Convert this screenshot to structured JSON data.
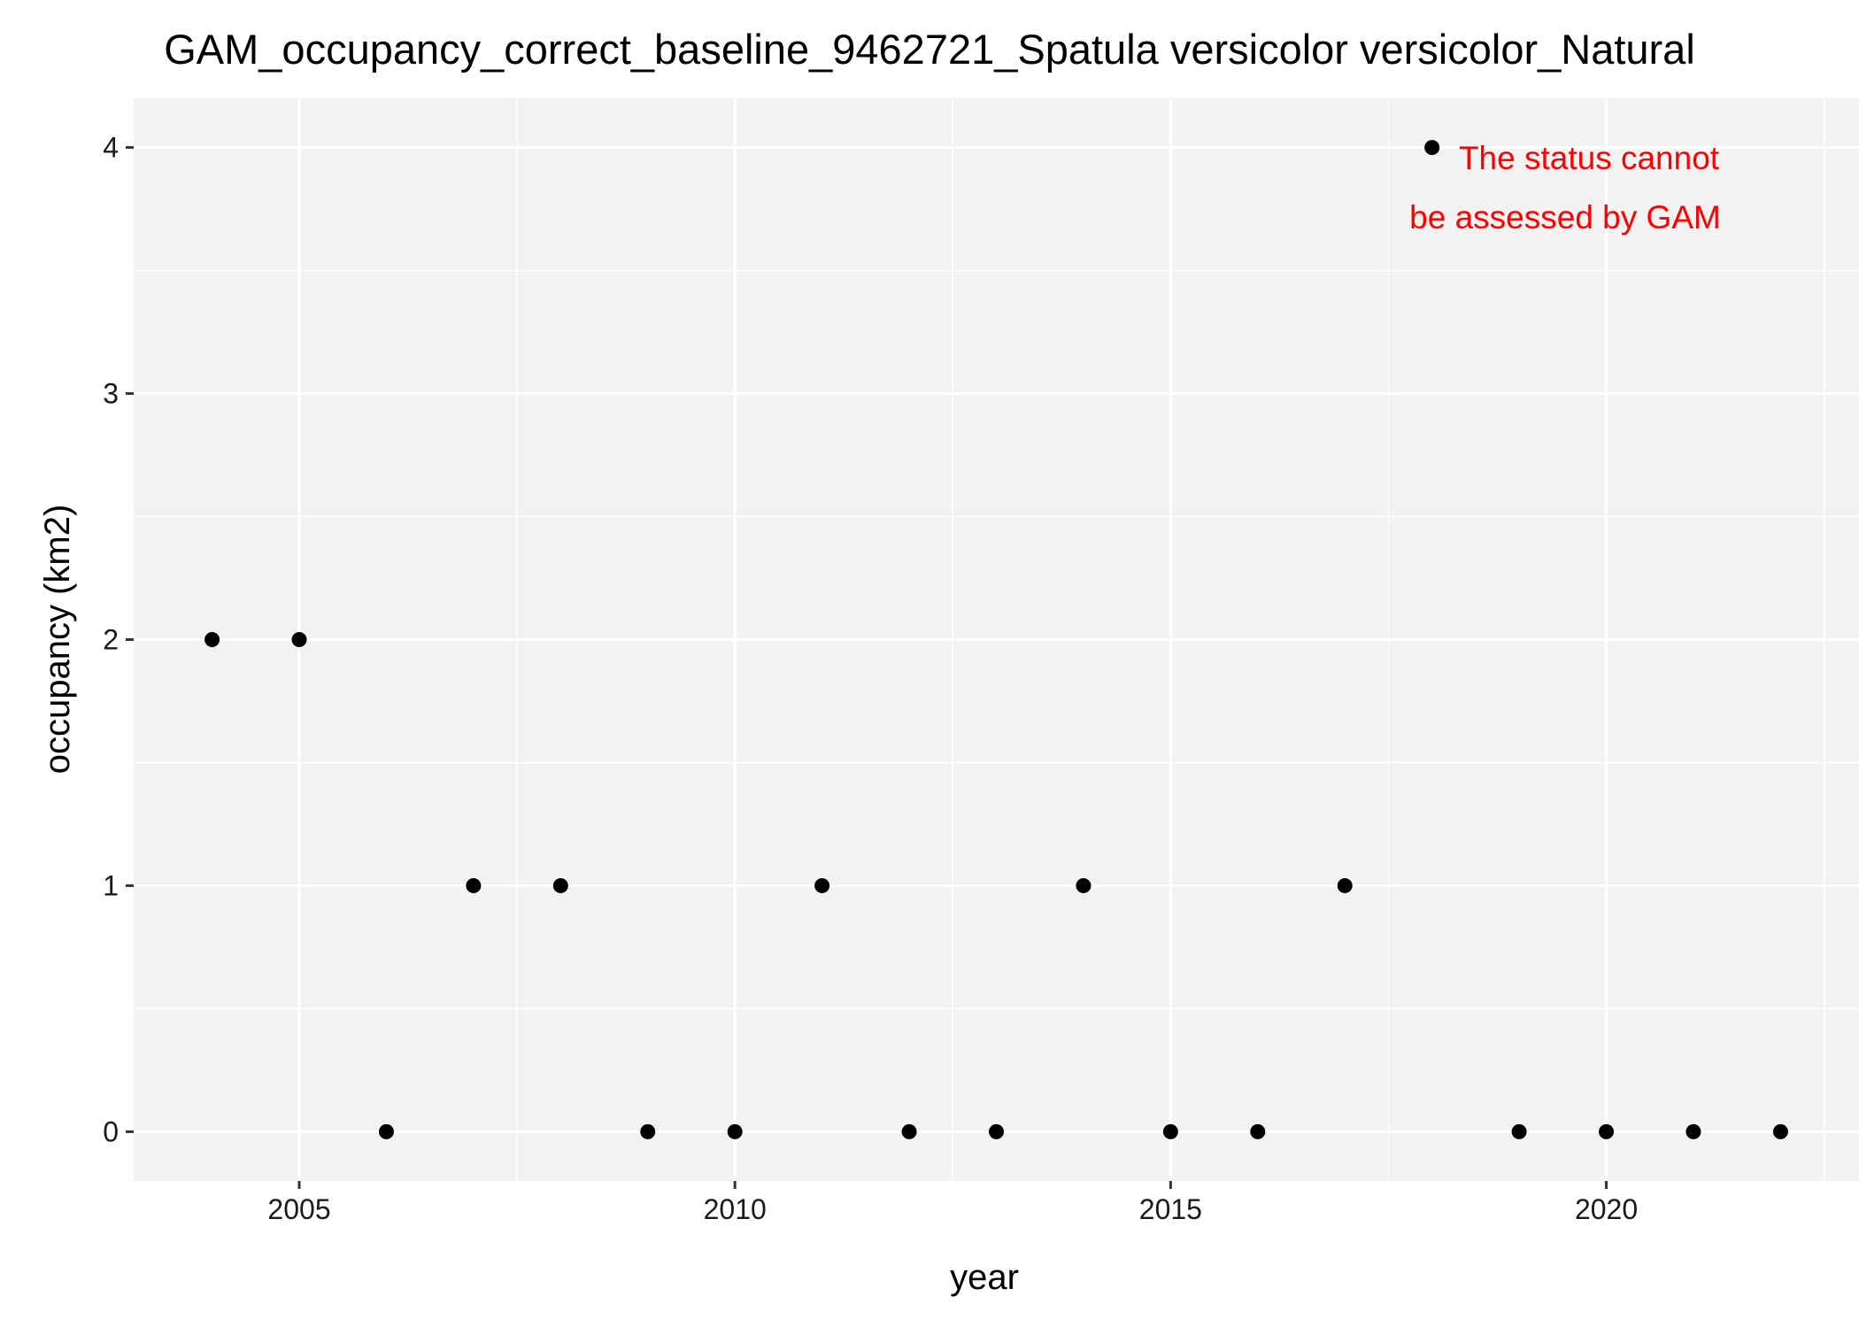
{
  "chart_data": {
    "type": "scatter",
    "title": "GAM_occupancy_correct_baseline_9462721_Spatula versicolor versicolor_Natural",
    "xlabel": "year",
    "ylabel": "occupancy (km2)",
    "xlim": [
      2003.1,
      2022.9
    ],
    "ylim": [
      -0.2,
      4.2
    ],
    "x_ticks": [
      2005,
      2010,
      2015,
      2020
    ],
    "y_ticks": [
      0,
      1,
      2,
      3,
      4
    ],
    "grid": true,
    "legend": "none",
    "colors": {
      "panel_background": "#f2f2f2",
      "grid": "#ffffff",
      "point": "#000000",
      "annotation": "#ff0000"
    },
    "points": [
      {
        "x": 2004,
        "y": 2
      },
      {
        "x": 2005,
        "y": 2
      },
      {
        "x": 2006,
        "y": 0
      },
      {
        "x": 2007,
        "y": 1
      },
      {
        "x": 2008,
        "y": 1
      },
      {
        "x": 2009,
        "y": 0
      },
      {
        "x": 2010,
        "y": 0
      },
      {
        "x": 2011,
        "y": 1
      },
      {
        "x": 2012,
        "y": 0
      },
      {
        "x": 2013,
        "y": 0
      },
      {
        "x": 2014,
        "y": 1
      },
      {
        "x": 2015,
        "y": 0
      },
      {
        "x": 2016,
        "y": 0
      },
      {
        "x": 2017,
        "y": 1
      },
      {
        "x": 2018,
        "y": 4
      },
      {
        "x": 2019,
        "y": 0
      },
      {
        "x": 2020,
        "y": 0
      },
      {
        "x": 2021,
        "y": 0
      },
      {
        "x": 2022,
        "y": 0
      }
    ],
    "annotation": {
      "lines": [
        "The status cannot",
        "be assessed by GAM"
      ]
    }
  }
}
